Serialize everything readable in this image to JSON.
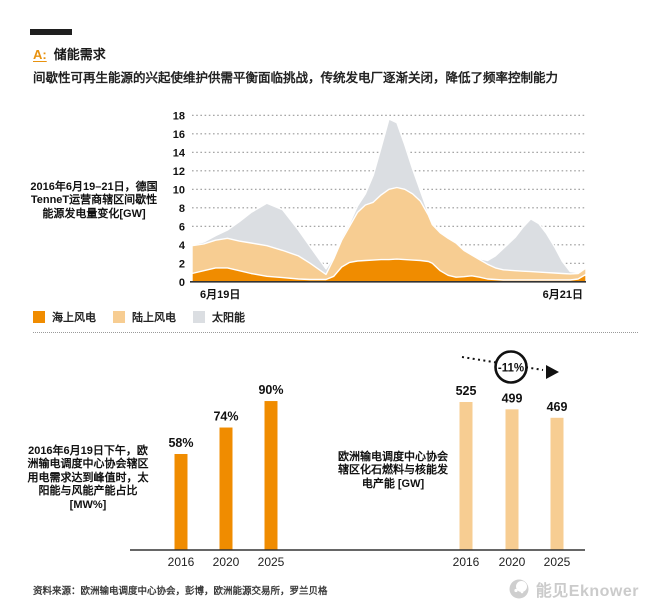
{
  "colors": {
    "orange": "#F08C00",
    "tan": "#F7CD92",
    "gray": "#DBDEE2",
    "axis": "#333333",
    "grid": "#9a9a9a",
    "accent_label": "#E8920F",
    "logo_gray": "#cbcbcb"
  },
  "header": {
    "section_label": "A:",
    "title": "储能需求",
    "subtitle": "间歇性可再生能源的兴起使维护供需平衡面临挑战，传统发电厂逐渐关闭，降低了频率控制能力"
  },
  "legend": {
    "items": [
      {
        "label": "海上风电",
        "color_key": "orange"
      },
      {
        "label": "陆上风电",
        "color_key": "tan"
      },
      {
        "label": "太阳能",
        "color_key": "gray"
      }
    ]
  },
  "chart_data": [
    {
      "id": "generation_area",
      "type": "area",
      "stacked": true,
      "annotation": "2016年6月19–21日，德国TenneT运营商辖区间歇性能源发电量变化[GW]",
      "ylim": [
        0,
        18
      ],
      "yticks": [
        0,
        2,
        4,
        6,
        8,
        10,
        12,
        14,
        16,
        18
      ],
      "grid": "dotted",
      "x_axis_labels": {
        "left": "6月19日",
        "right": "6月21日"
      },
      "x_pct": [
        0,
        3,
        6,
        9,
        12,
        15,
        19,
        23,
        27,
        30,
        34,
        36,
        38,
        40,
        42,
        44,
        46,
        48,
        50,
        52,
        54,
        56,
        58,
        60,
        61,
        63,
        65,
        67,
        69,
        71,
        73,
        75,
        77,
        79,
        82,
        84,
        86,
        88,
        90,
        92,
        94,
        96,
        98,
        100
      ],
      "series": [
        {
          "name": "海上风电",
          "color_key": "orange",
          "values": [
            0.9,
            1.2,
            1.5,
            1.5,
            1.2,
            0.9,
            0.6,
            0.45,
            0.3,
            0.25,
            0.25,
            0.6,
            1.6,
            2.1,
            2.25,
            2.3,
            2.35,
            2.4,
            2.4,
            2.45,
            2.4,
            2.35,
            2.3,
            2.2,
            2.0,
            1.2,
            0.7,
            0.5,
            0.55,
            0.65,
            0.5,
            0.3,
            0.25,
            0.2,
            0.2,
            0.2,
            0.2,
            0.2,
            0.2,
            0.2,
            0.2,
            0.2,
            0.3,
            0.8
          ]
        },
        {
          "name": "陆上风电",
          "color_key": "tan",
          "values": [
            3.0,
            2.9,
            3.0,
            3.2,
            3.2,
            3.3,
            3.3,
            2.95,
            2.5,
            1.75,
            0.55,
            1.9,
            2.9,
            3.9,
            5.25,
            6.0,
            6.25,
            7.0,
            7.6,
            7.75,
            7.6,
            7.15,
            6.4,
            5.0,
            4.2,
            4.1,
            4.0,
            3.7,
            2.85,
            2.25,
            1.9,
            1.6,
            1.25,
            1.1,
            1.0,
            0.95,
            0.9,
            0.85,
            0.8,
            0.75,
            0.7,
            0.65,
            0.6,
            0.7
          ]
        },
        {
          "name": "太阳能",
          "color_key": "gray",
          "values": [
            0.1,
            0.2,
            0.5,
            0.9,
            2.1,
            3.3,
            4.6,
            4.4,
            2.8,
            1.8,
            0.6,
            0.2,
            0.3,
            0.3,
            0.7,
            1.2,
            2.9,
            5.1,
            7.6,
            7.0,
            4.8,
            2.7,
            1.1,
            0.2,
            0.2,
            0.1,
            0.1,
            0.1,
            0.1,
            0.1,
            0.1,
            0.4,
            1.3,
            2.3,
            3.6,
            4.75,
            5.7,
            5.25,
            4.2,
            2.85,
            1.3,
            0.25,
            0.1,
            0.1
          ]
        }
      ]
    },
    {
      "id": "peak_share_bars",
      "type": "bar",
      "annotation": "2016年6月19日下午，欧洲输电调度中心协会辖区用电需求达到峰值时，太阳能与风能产能占比 [MW%]",
      "categories": [
        "2016",
        "2020",
        "2025"
      ],
      "values": [
        58,
        74,
        90
      ],
      "value_labels": [
        "58%",
        "74%",
        "90%"
      ],
      "color_key": "orange"
    },
    {
      "id": "capacity_bars",
      "type": "bar",
      "annotation": "欧洲输电调度中心协会辖区化石燃料与核能发电产能 [GW]",
      "categories": [
        "2016",
        "2020",
        "2025"
      ],
      "values": [
        525,
        499,
        469
      ],
      "value_labels": [
        "525",
        "499",
        "469"
      ],
      "color_key": "tan",
      "trend_annotation": "-11%"
    }
  ],
  "footer": {
    "source": "资料来源：欧洲输电调度中心协会，彭博，欧洲能源交易所，罗兰贝格",
    "logo_text": "能见Eknower"
  }
}
